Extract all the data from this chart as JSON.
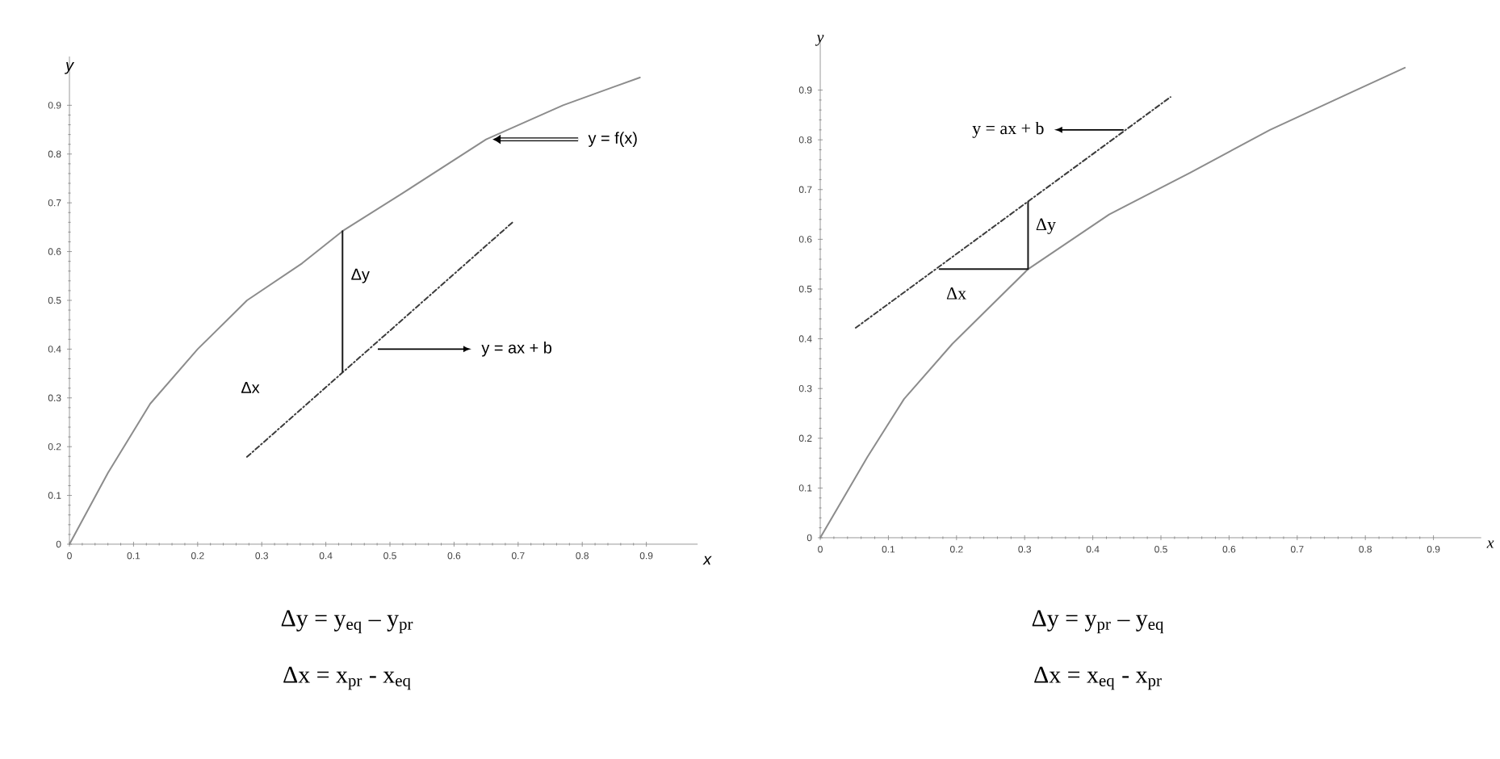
{
  "chart_data": [
    {
      "type": "line",
      "xlabel": "x",
      "ylabel": "y",
      "xlim": [
        0,
        0.98
      ],
      "ylim": [
        0,
        1
      ],
      "xticks": [
        0,
        0.1,
        0.2,
        0.3,
        0.4,
        0.5,
        0.6,
        0.7,
        0.8,
        0.9
      ],
      "yticks": [
        0,
        0.1,
        0.2,
        0.3,
        0.4,
        0.5,
        0.6,
        0.7,
        0.8,
        0.9
      ],
      "series": [
        {
          "color": "#8c8c8c",
          "line_style": "solid",
          "x": [
            0,
            0.06,
            0.126,
            0.2,
            0.277,
            0.363,
            0.426,
            0.52,
            0.65,
            0.77,
            0.89
          ],
          "values": [
            0,
            0.146,
            0.288,
            0.4,
            0.5,
            0.576,
            0.642,
            0.72,
            0.83,
            0.9,
            0.957
          ]
        },
        {
          "color": "#3c3c3c",
          "line_style": "dashed",
          "x": [
            0.277,
            0.693
          ],
          "values": [
            0.179,
            0.662
          ]
        },
        {
          "color": "#1a1a1a",
          "line_style": "solid",
          "x": [
            0.426,
            0.426
          ],
          "values": [
            0.354,
            0.642
          ]
        }
      ],
      "annotations": [
        {
          "text": "y = f(x)",
          "x": 0.65,
          "y": 0.83
        },
        {
          "text": "y = ax + b",
          "x": 0.476,
          "y": 0.41
        },
        {
          "text": "Δy",
          "x": 0.426,
          "y": 0.55
        },
        "Δx",
        "Δy = y$_{eq}$ – y$_{pr}$",
        "Δx = x$_{pr}$ - x$_{eq}$"
      ]
    },
    {
      "type": "line",
      "xlabel": "x",
      "ylabel": "y",
      "xlim": [
        0,
        0.97
      ],
      "ylim": [
        0,
        1
      ],
      "xticks": [
        0,
        0.1,
        0.2,
        0.3,
        0.4,
        0.5,
        0.6,
        0.7,
        0.8,
        0.9
      ],
      "yticks": [
        0,
        0.1,
        0.2,
        0.3,
        0.4,
        0.5,
        0.6,
        0.7,
        0.8,
        0.9
      ],
      "series": [
        {
          "color": "#8c8c8c",
          "line_style": "solid",
          "x": [
            0,
            0.069,
            0.123,
            0.194,
            0.305,
            0.424,
            0.543,
            0.66,
            0.78,
            0.858
          ],
          "values": [
            0,
            0.162,
            0.279,
            0.39,
            0.54,
            0.65,
            0.734,
            0.82,
            0.896,
            0.945
          ]
        },
        {
          "color": "#3c3c3c",
          "line_style": "dashed",
          "x": [
            0.052,
            0.514
          ],
          "values": [
            0.422,
            0.886
          ]
        },
        {
          "color": "#1a1a1a",
          "line_style": "solid",
          "x": [
            0.175,
            0.305,
            0.305
          ],
          "values": [
            0.54,
            0.54,
            0.675
          ]
        }
      ],
      "annotations": [
        {
          "text": "y = ax + b",
          "x": 0.45,
          "y": 0.82
        },
        {
          "text": "Δy",
          "x": 0.305,
          "y": 0.61
        },
        {
          "text": "Δx",
          "x": 0.24,
          "y": 0.54
        },
        "Δy = y$_{pr}$ – y$_{eq}$",
        "Δx = x$_{eq}$ - x$_{pr}$"
      ]
    }
  ]
}
